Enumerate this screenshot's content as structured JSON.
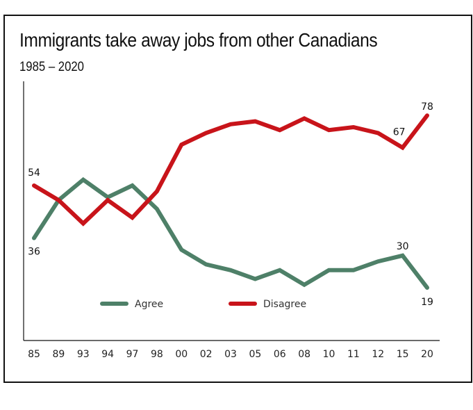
{
  "chart_data": {
    "type": "line",
    "title": "Immigrants take away jobs from other Canadians",
    "subtitle": "1985 – 2020",
    "xlabel": "",
    "ylabel": "",
    "categories": [
      "85",
      "89",
      "93",
      "94",
      "97",
      "98",
      "00",
      "02",
      "03",
      "05",
      "06",
      "08",
      "10",
      "11",
      "12",
      "15",
      "20"
    ],
    "ylim": [
      10,
      90
    ],
    "grid": false,
    "legend_position": "bottom-center",
    "series": [
      {
        "name": "Agree",
        "color": "#4e8068",
        "values": [
          36,
          49,
          56,
          50,
          54,
          46,
          32,
          27,
          25,
          22,
          25,
          20,
          25,
          25,
          28,
          30,
          19
        ],
        "labels": {
          "0": "36",
          "15": "30",
          "16": "19"
        }
      },
      {
        "name": "Disagree",
        "color": "#c8141a",
        "values": [
          54,
          49,
          41,
          49,
          43,
          52,
          68,
          72,
          75,
          76,
          73,
          77,
          73,
          74,
          72,
          67,
          78
        ],
        "labels": {
          "0": "54",
          "15": "67",
          "16": "78"
        }
      }
    ]
  }
}
